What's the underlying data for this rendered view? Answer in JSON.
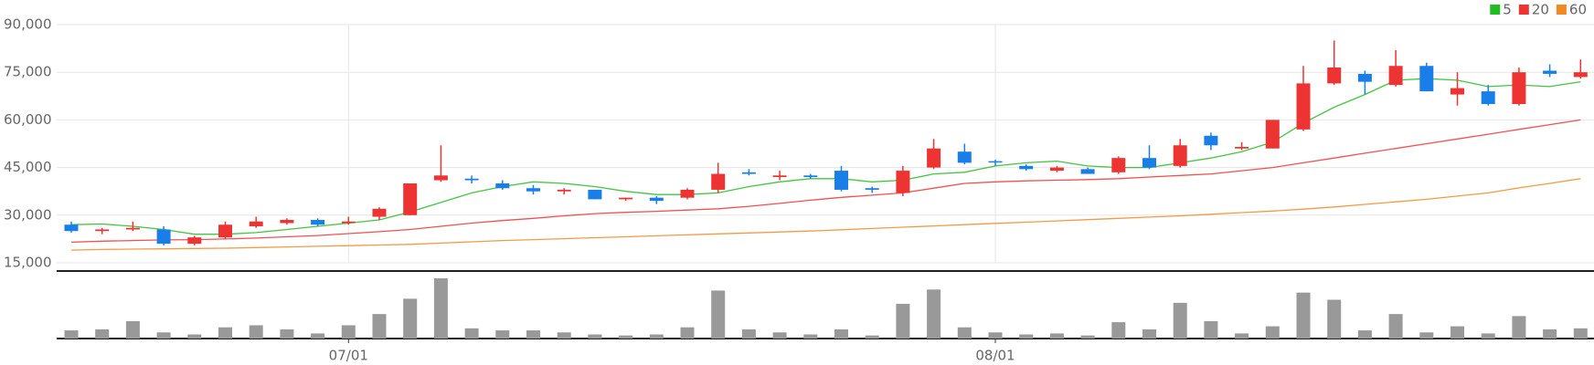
{
  "chart_data": {
    "type": "candlestick",
    "categories": [
      null,
      null,
      null,
      null,
      null,
      null,
      null,
      null,
      null,
      "07/01",
      null,
      null,
      null,
      null,
      null,
      null,
      null,
      null,
      null,
      null,
      null,
      null,
      null,
      null,
      null,
      null,
      null,
      null,
      null,
      null,
      "08/01",
      null,
      null,
      null,
      null,
      null,
      null,
      null,
      null,
      null,
      null,
      null,
      null,
      null,
      null,
      null,
      null,
      null,
      null,
      null
    ],
    "open": [
      27000,
      25000,
      25500,
      25500,
      21000,
      23000,
      26500,
      27500,
      28500,
      27500,
      29500,
      30000,
      41000,
      41500,
      40000,
      38500,
      37500,
      38000,
      35000,
      35500,
      35500,
      38000,
      43500,
      42000,
      42500,
      44000,
      38500,
      37000,
      45000,
      50000,
      47000,
      45500,
      44000,
      44500,
      43500,
      48000,
      45500,
      55000,
      51000,
      51000,
      57000,
      71500,
      74500,
      71000,
      77000,
      68000,
      69000,
      65000,
      75500,
      73500
    ],
    "high": [
      28000,
      26000,
      28000,
      26500,
      23500,
      28000,
      29500,
      29000,
      29000,
      29500,
      32500,
      40000,
      52000,
      42500,
      41000,
      39500,
      38500,
      38000,
      35500,
      36000,
      38500,
      46500,
      44500,
      44000,
      43000,
      45500,
      39000,
      45500,
      54000,
      52500,
      47500,
      46000,
      45500,
      45000,
      48500,
      52000,
      54000,
      56000,
      53000,
      60000,
      77000,
      85000,
      75500,
      82000,
      78000,
      75000,
      71000,
      76500,
      77500,
      79000
    ],
    "low": [
      24500,
      24000,
      25000,
      20500,
      20500,
      22500,
      26000,
      27000,
      26500,
      27000,
      28500,
      30000,
      40500,
      40000,
      38000,
      36500,
      36500,
      35000,
      34500,
      33500,
      35000,
      37000,
      42500,
      41000,
      41500,
      37500,
      37000,
      36000,
      44500,
      46000,
      45500,
      44000,
      43500,
      43000,
      43000,
      44500,
      45000,
      50500,
      50500,
      51000,
      56500,
      71000,
      68000,
      70500,
      69000,
      64500,
      64500,
      64500,
      73500,
      73000
    ],
    "close": [
      25000,
      25500,
      26000,
      21000,
      23000,
      27000,
      28000,
      28500,
      27000,
      28000,
      32000,
      40000,
      42500,
      41000,
      38500,
      37500,
      38000,
      35000,
      35500,
      34500,
      38000,
      43000,
      43000,
      42500,
      42000,
      38000,
      38000,
      44000,
      51000,
      46500,
      46800,
      44500,
      45000,
      43000,
      48000,
      45000,
      52000,
      52000,
      51500,
      60000,
      71500,
      76500,
      72000,
      77000,
      69000,
      70000,
      65000,
      75000,
      74500,
      75000
    ],
    "volume": [
      8,
      9,
      17,
      6,
      4,
      11,
      13,
      9,
      5,
      13,
      24,
      39,
      59,
      10,
      8,
      8,
      6,
      4,
      3,
      4,
      11,
      47,
      9,
      6,
      4,
      9,
      3,
      34,
      48,
      11,
      6,
      4,
      5,
      3,
      16,
      9,
      35,
      17,
      5,
      12,
      45,
      38,
      8,
      24,
      6,
      12,
      5,
      22,
      9,
      10
    ],
    "series": [
      {
        "name": "5",
        "color": "#22bb22",
        "values": [
          27000,
          27200,
          26500,
          25500,
          24000,
          24000,
          24500,
          25500,
          26500,
          27500,
          28500,
          31000,
          34000,
          37000,
          39000,
          40500,
          40000,
          39000,
          37500,
          36500,
          36500,
          37000,
          39000,
          40500,
          41500,
          41500,
          40500,
          41000,
          43000,
          43500,
          45500,
          46500,
          47000,
          45500,
          45000,
          45000,
          46500,
          48000,
          50000,
          53000,
          59000,
          64000,
          68000,
          72500,
          73000,
          72500,
          70500,
          71000,
          70500,
          72000
        ]
      },
      {
        "name": "20",
        "color": "#ee3333",
        "values": [
          21500,
          21800,
          22000,
          22200,
          22300,
          22500,
          22800,
          23200,
          23600,
          24200,
          24800,
          25500,
          26500,
          27500,
          28300,
          29000,
          29800,
          30500,
          30900,
          31200,
          31600,
          32000,
          32800,
          33700,
          34700,
          35600,
          36300,
          37000,
          38500,
          40000,
          40500,
          40800,
          41000,
          41200,
          41500,
          42000,
          42500,
          43000,
          44000,
          45000,
          46500,
          48000,
          49500,
          51000,
          52500,
          54000,
          55500,
          57000,
          58500,
          60000
        ]
      },
      {
        "name": "60",
        "color": "#f08a24",
        "values": [
          19000,
          19200,
          19300,
          19400,
          19500,
          19600,
          19800,
          20000,
          20200,
          20400,
          20600,
          20800,
          21200,
          21600,
          22000,
          22300,
          22600,
          22900,
          23200,
          23500,
          23800,
          24100,
          24400,
          24700,
          25000,
          25400,
          25800,
          26200,
          26600,
          27000,
          27400,
          27800,
          28200,
          28600,
          29000,
          29400,
          29800,
          30300,
          30800,
          31300,
          31900,
          32600,
          33400,
          34200,
          35000,
          36000,
          37000,
          38600,
          40000,
          41500
        ]
      }
    ],
    "up_color": "#ee3333",
    "down_color": "#1a7ee8",
    "volume_color": "#999999",
    "ylim": [
      15000,
      90000
    ],
    "yticks": [
      {
        "value": 15000,
        "label": "15,000"
      },
      {
        "value": 30000,
        "label": "30,000"
      },
      {
        "value": 45000,
        "label": "45,000"
      },
      {
        "value": 60000,
        "label": "60,000"
      },
      {
        "value": 75000,
        "label": "75,000"
      },
      {
        "value": 90000,
        "label": "90,000"
      }
    ],
    "grid": true
  }
}
